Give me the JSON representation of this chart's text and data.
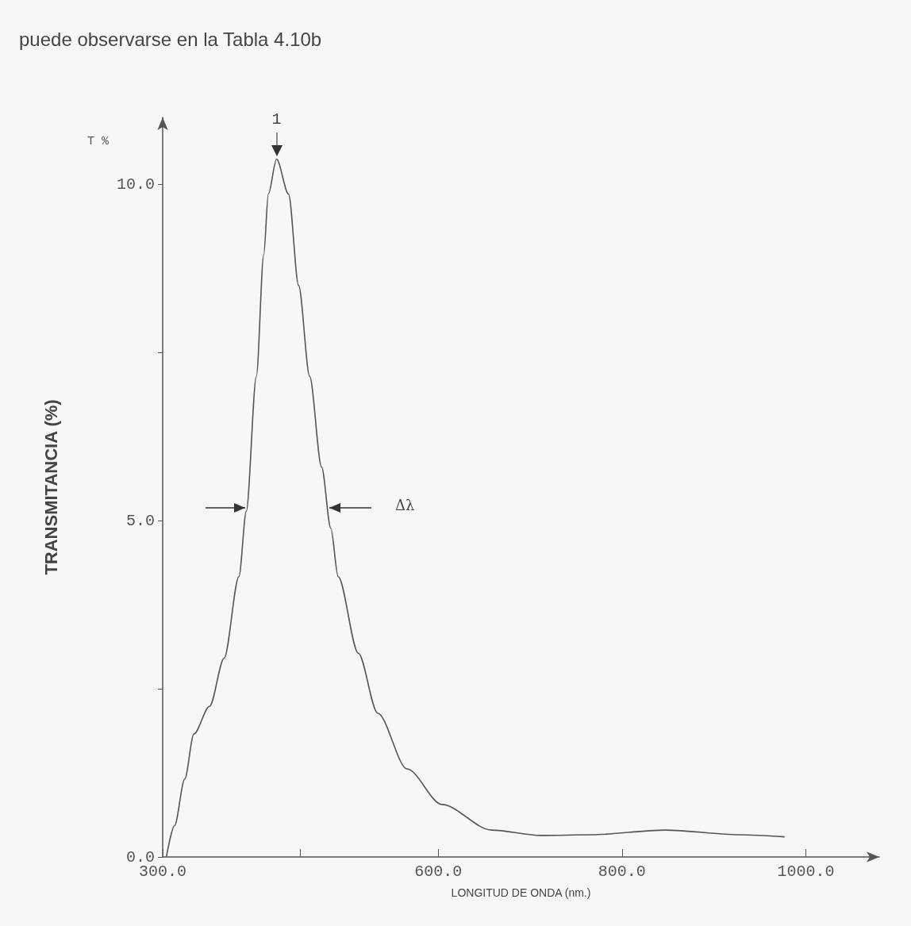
{
  "chart_data": {
    "type": "line",
    "xlabel": "LONGITUD DE ONDA (nm.)",
    "ylabel": "TRANSMITANCIA (%)",
    "annotations": [
      "puede observarse en la Tabla 4.10b",
      "T %",
      {
        "text": "1",
        "x": 424,
        "y": 10.38
      },
      "Δλ"
    ],
    "xlim": [
      300,
      1080
    ],
    "ylim": [
      0,
      11
    ],
    "xticks": [
      {
        "value": 300,
        "label": "300.0"
      },
      {
        "value": 450,
        "label": null
      },
      {
        "value": 600,
        "label": "600.0"
      },
      {
        "value": 800,
        "label": "800.0"
      },
      {
        "value": 1000,
        "label": "1000.0"
      }
    ],
    "yticks": [
      {
        "value": 0,
        "label": "0.0"
      },
      {
        "value": 2.5,
        "label": null
      },
      {
        "value": 5,
        "label": "5.0"
      },
      {
        "value": 7.5,
        "label": null
      },
      {
        "value": 10,
        "label": "10.0"
      }
    ],
    "grid": false,
    "marker": "none",
    "line_style": "solid",
    "series": [
      {
        "color": "#555555",
        "x": [
          304,
          313,
          324,
          334,
          351,
          367,
          383,
          391,
          402,
          410,
          415,
          424,
          437,
          448,
          460,
          473,
          483,
          491,
          513,
          534,
          566,
          604,
          658,
          712,
          766,
          847,
          928,
          977
        ],
        "values": [
          0,
          0.47,
          1.16,
          1.83,
          2.24,
          2.96,
          4.17,
          5.14,
          7.15,
          8.96,
          9.86,
          10.38,
          9.86,
          8.5,
          7.15,
          5.8,
          4.89,
          4.17,
          3.03,
          2.14,
          1.31,
          0.78,
          0.4,
          0.32,
          0.33,
          0.4,
          0.33,
          0.3
        ]
      }
    ]
  }
}
